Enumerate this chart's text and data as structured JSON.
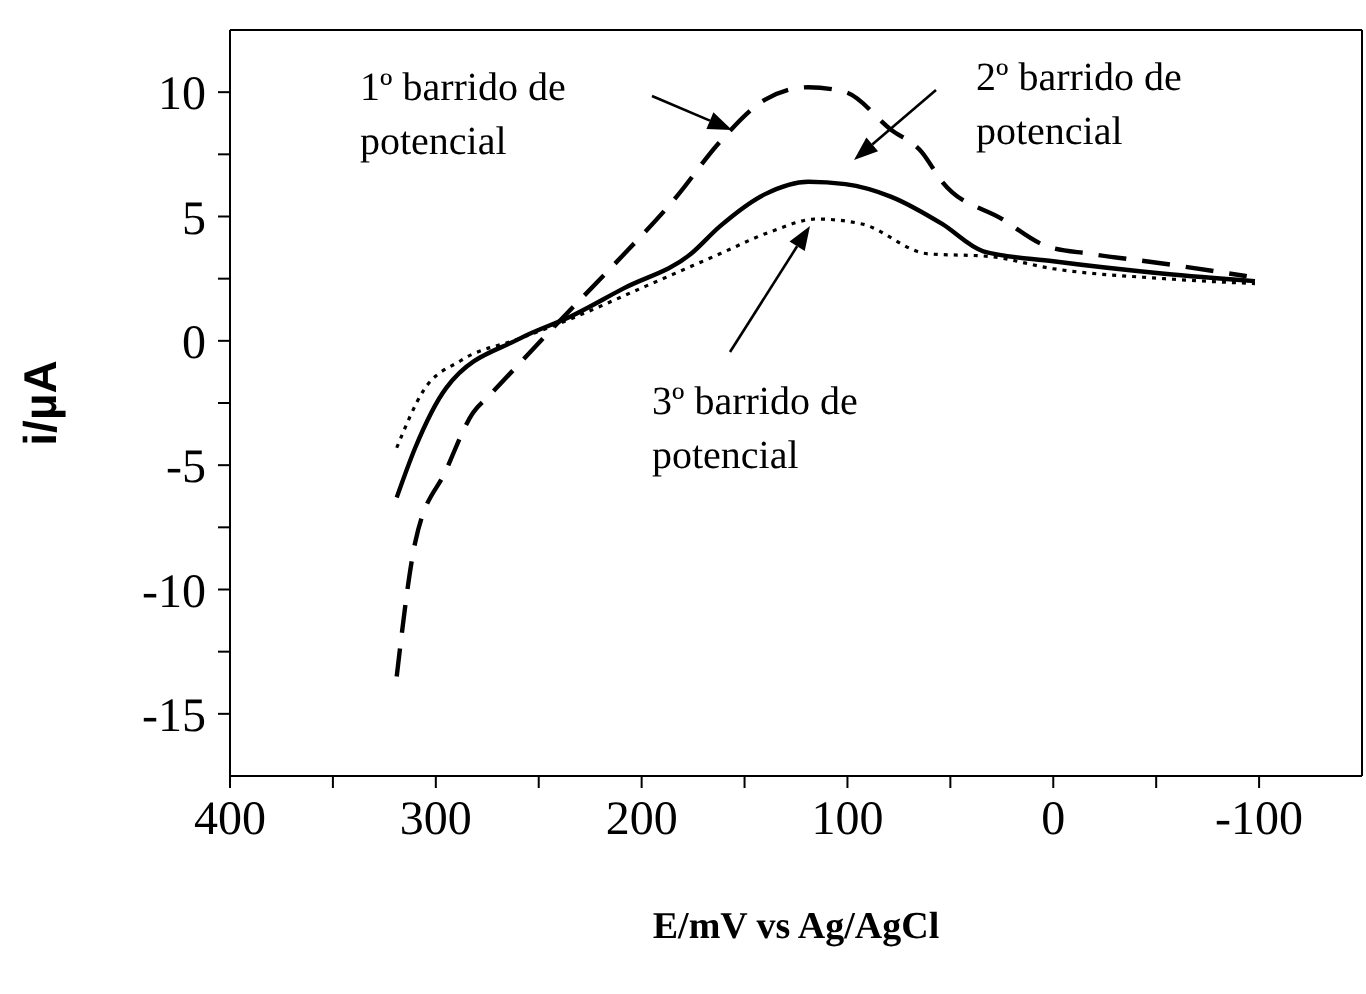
{
  "chart_data": {
    "type": "line",
    "xlabel": "E/mV vs Ag/AgCl",
    "ylabel": "i/µA",
    "xlim": [
      400,
      -150
    ],
    "xticks": [
      400,
      {
        "value": 350,
        "label": null
      },
      300,
      {
        "value": 250,
        "label": null
      },
      200,
      {
        "value": 150,
        "label": null
      },
      100,
      {
        "value": 50,
        "label": null
      },
      0,
      {
        "value": -50,
        "label": null
      },
      -100
    ],
    "ylim": [
      -17.5,
      12.5
    ],
    "yticks": [
      -15,
      {
        "value": -12.5,
        "label": null
      },
      -10,
      {
        "value": -7.5,
        "label": null
      },
      -5,
      {
        "value": -2.5,
        "label": null
      },
      0,
      {
        "value": 2.5,
        "label": null
      },
      5,
      {
        "value": 7.5,
        "label": null
      },
      10
    ],
    "marker": "none",
    "series": [
      {
        "color": "#000000",
        "line_style": "dashed",
        "x": [
          319,
          310,
          295,
          282,
          274,
          241,
          213,
          183,
          162,
          140,
          119,
          101,
          79,
          64,
          54,
          25,
          3,
          -18,
          -54,
          -94
        ],
        "values": [
          -13.5,
          -8.1,
          -5.2,
          -2.9,
          -2.2,
          0.7,
          3.1,
          5.8,
          8.0,
          9.7,
          10.2,
          10.0,
          8.5,
          7.6,
          6.4,
          4.9,
          3.8,
          3.5,
          3.1,
          2.6
        ]
      },
      {
        "color": "#000000",
        "line_style": "solid",
        "x": [
          319,
          310,
          295,
          259,
          234,
          209,
          176,
          162,
          140,
          119,
          101,
          79,
          54,
          34,
          0,
          -54,
          -98
        ],
        "values": [
          -6.3,
          -4.3,
          -1.9,
          0.1,
          1.0,
          2.1,
          3.5,
          4.6,
          5.9,
          6.4,
          6.3,
          5.8,
          4.7,
          3.6,
          3.2,
          2.7,
          2.4
        ]
      },
      {
        "color": "#000000",
        "line_style": "dotted",
        "x": [
          319,
          306,
          288,
          259,
          234,
          198,
          162,
          137,
          115,
          93,
          61,
          32,
          0,
          -54,
          -98
        ],
        "values": [
          -4.3,
          -2.0,
          -0.8,
          0.1,
          0.9,
          2.2,
          3.5,
          4.4,
          4.9,
          4.7,
          3.5,
          3.4,
          2.9,
          2.5,
          2.3
        ]
      }
    ],
    "annotations": [
      "1º barrido de\npotencial",
      "2º barrido de\npotencial",
      "3º barrido de\npotencial"
    ]
  }
}
